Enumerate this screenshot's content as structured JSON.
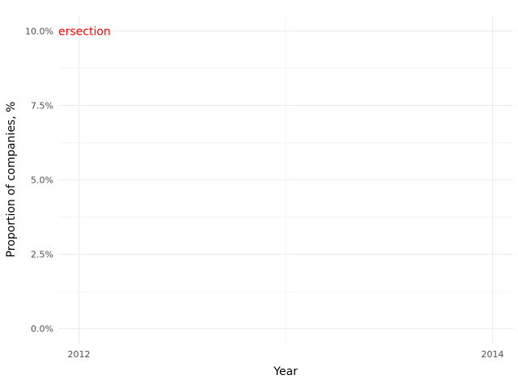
{
  "chart_data": {
    "type": "line",
    "title": "",
    "xlabel": "Year",
    "ylabel": "Proportion of companies, %",
    "x_ticks": [
      {
        "value": 2012,
        "label": "2012"
      },
      {
        "value": 2014,
        "label": "2014"
      }
    ],
    "y_ticks": [
      {
        "value": 0.0,
        "label": "0.0%"
      },
      {
        "value": 2.5,
        "label": "2.5%"
      },
      {
        "value": 5.0,
        "label": "5.0%"
      },
      {
        "value": 7.5,
        "label": "7.5%"
      },
      {
        "value": 10.0,
        "label": "10.0%"
      }
    ],
    "xlim": [
      2011.9,
      2014.1
    ],
    "ylim": [
      -0.5,
      10.5
    ],
    "grid": true,
    "series": [],
    "annotations": [
      {
        "text": "ersection",
        "color": "#ff0000",
        "x": 2011.9,
        "y": 10.0
      }
    ]
  }
}
